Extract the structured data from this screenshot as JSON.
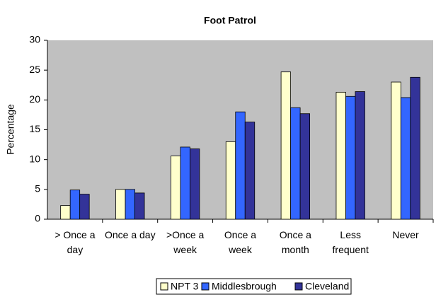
{
  "chart_data": {
    "type": "bar",
    "title": "Foot Patrol",
    "y_label": "Percentage",
    "categories": [
      "> Once a day",
      "Once a day",
      ">Once a week",
      "Once a week",
      "Once a month",
      "Less frequent",
      "Never"
    ],
    "series": [
      {
        "name": "NPT 3",
        "color": "#ffffcc",
        "values": [
          2.3,
          5.0,
          10.6,
          13.0,
          24.7,
          21.3,
          23.0
        ]
      },
      {
        "name": "Middlesbrough",
        "color": "#3366ff",
        "values": [
          4.9,
          5.0,
          12.1,
          18.0,
          18.7,
          20.6,
          20.4
        ]
      },
      {
        "name": "Cleveland",
        "color": "#333399",
        "values": [
          4.2,
          4.4,
          11.8,
          16.3,
          17.7,
          21.4,
          23.8
        ]
      }
    ],
    "ylim": [
      0,
      30
    ],
    "yticks": [
      0,
      5,
      10,
      15,
      20,
      25,
      30
    ],
    "grid": false,
    "legend": "bottom",
    "background": "#c0c0c0"
  }
}
